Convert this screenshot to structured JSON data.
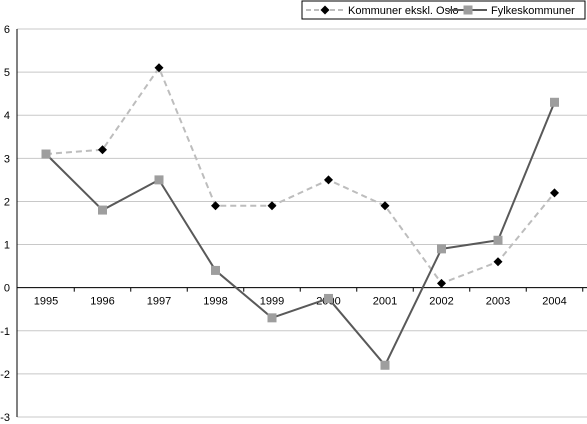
{
  "chart_data": {
    "type": "line",
    "title": "",
    "xlabel": "",
    "ylabel": "",
    "x": [
      "1995",
      "1996",
      "1997",
      "1998",
      "1999",
      "2000",
      "2001",
      "2002",
      "2003",
      "2004"
    ],
    "ylim": [
      -3,
      6
    ],
    "yticks": [
      "-3",
      "-2",
      "-1",
      "0",
      "1",
      "2",
      "3",
      "4",
      "5",
      "6"
    ],
    "grid": true,
    "legend_position": "top-right",
    "series": [
      {
        "name": "Kommuner ekskl. Oslo",
        "values": [
          3.1,
          3.2,
          5.1,
          1.9,
          1.9,
          2.5,
          1.9,
          0.1,
          0.6,
          2.2
        ],
        "line_color": "#bdbdbd",
        "line_style": "dashed",
        "marker": "diamond",
        "marker_color": "#000000"
      },
      {
        "name": "Fylkeskommuner",
        "values": [
          3.1,
          1.8,
          2.5,
          0.4,
          -0.7,
          -0.25,
          -1.8,
          0.9,
          1.1,
          4.3
        ],
        "line_color": "#595959",
        "line_style": "solid",
        "marker": "square",
        "marker_color": "#9e9e9e"
      }
    ]
  }
}
